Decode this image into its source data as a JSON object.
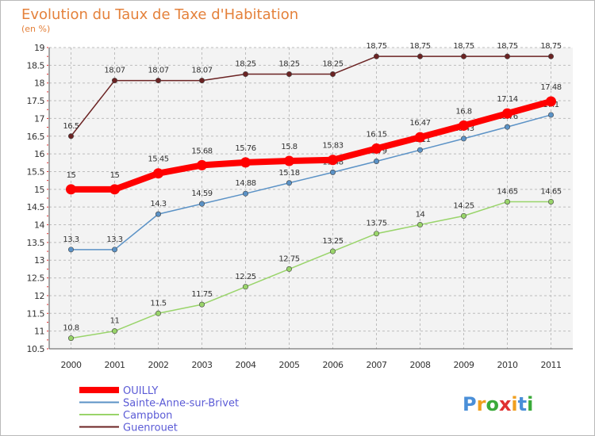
{
  "chart_data": {
    "type": "line",
    "title": "Evolution du Taux de Taxe d'Habitation",
    "subtitle": "(en %)",
    "categories": [
      "2000",
      "2001",
      "2002",
      "2003",
      "2004",
      "2005",
      "2006",
      "2007",
      "2008",
      "2009",
      "2010",
      "2011"
    ],
    "ylim": [
      10.5,
      19
    ],
    "yticks": [
      "10.5",
      "11",
      "11.5",
      "12",
      "12.5",
      "13",
      "13.5",
      "14",
      "14.5",
      "15",
      "15.5",
      "16",
      "16.5",
      "17",
      "17.5",
      "18",
      "18.5",
      "19"
    ],
    "grid": true,
    "legend_position": "bottom-left",
    "series": [
      {
        "name": "Guenrouet",
        "color": "#6b2323",
        "values": [
          16.5,
          18.07,
          18.07,
          18.07,
          18.25,
          18.25,
          18.25,
          18.75,
          18.75,
          18.75,
          18.75,
          18.75
        ],
        "labels": [
          "16.5",
          "18.07",
          "18.07",
          "18.07",
          "18.25",
          "18.25",
          "18.25",
          "18.75",
          "18.75",
          "18.75",
          "18.75",
          "18.75"
        ]
      },
      {
        "name": "Sainte-Anne-sur-Brivet",
        "color": "#5b92c6",
        "values": [
          13.3,
          13.3,
          14.3,
          14.59,
          14.88,
          15.18,
          15.48,
          15.79,
          16.11,
          16.43,
          16.76,
          17.1
        ],
        "labels": [
          "13.3",
          "13.3",
          "14.3",
          "14.59",
          "14.88",
          "15.18",
          "15.48",
          "15.79",
          "16.11",
          "16.43",
          "16.76",
          "17.1"
        ]
      },
      {
        "name": "Campbon",
        "color": "#99d46a",
        "values": [
          10.8,
          11,
          11.5,
          11.75,
          12.25,
          12.75,
          13.25,
          13.75,
          14,
          14.25,
          14.65,
          14.65
        ],
        "labels": [
          "10.8",
          "11",
          "11.5",
          "11.75",
          "12.25",
          "12.75",
          "13.25",
          "13.75",
          "14",
          "14.25",
          "14.65",
          "14.65"
        ]
      },
      {
        "name": "OUILLY",
        "color": "#ff0000",
        "values": [
          15,
          15,
          15.45,
          15.68,
          15.76,
          15.8,
          15.83,
          16.15,
          16.47,
          16.8,
          17.14,
          17.48
        ],
        "labels": [
          "15",
          "15",
          "15.45",
          "15.68",
          "15.76",
          "15.8",
          "15.83",
          "16.15",
          "16.47",
          "16.8",
          "17.14",
          "17.48"
        ]
      }
    ],
    "legend": [
      "OUILLY",
      "Sainte-Anne-sur-Brivet",
      "Campbon",
      "Guenrouet"
    ],
    "legend_colors": [
      "#ff0000",
      "#5b92c6",
      "#99d46a",
      "#6b2323"
    ],
    "legend_text_color": "#5b5bd6"
  },
  "logo": {
    "text": "Proxiti",
    "letter_colors": [
      "#4a8fd8",
      "#f0a020",
      "#3aaa3a",
      "#e03030",
      "#f0a020",
      "#4a8fd8",
      "#3aaa3a"
    ]
  }
}
